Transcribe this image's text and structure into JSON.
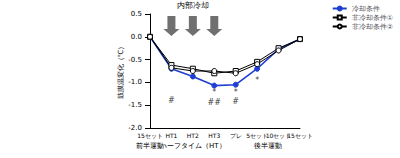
{
  "chart_data": {
    "type": "line",
    "y_label": "鼓膜温変化（℃）",
    "categories": [
      "15セット",
      "HT1",
      "HT2",
      "HT3",
      "プレ",
      "5セット",
      "10セット",
      "15セット"
    ],
    "series": [
      {
        "name": "冷却条件",
        "color": "#1f3fd0",
        "marker": "circle",
        "line_style": "solid",
        "values": [
          0,
          -0.7,
          -0.87,
          -1.07,
          -1.05,
          -0.7,
          -0.27,
          -0.05
        ]
      },
      {
        "name": "非冷却条件①",
        "color": "#000000",
        "marker": "square",
        "line_style": "solid",
        "values": [
          0,
          -0.62,
          -0.7,
          -0.8,
          -0.75,
          -0.55,
          -0.25,
          -0.05
        ]
      },
      {
        "name": "非冷却条件②",
        "color": "#000000",
        "marker": "open_circle",
        "line_style": "solid",
        "values": [
          0,
          -0.68,
          -0.75,
          -0.75,
          -0.8,
          -0.6,
          -0.3,
          -0.05
        ]
      }
    ],
    "ylim": [
      -2.0,
      0.5
    ],
    "yticks": [
      {
        "value": -2.0,
        "label": "-2.0"
      },
      {
        "value": -1.5,
        "label": "-1.5"
      },
      {
        "value": -1.0,
        "label": "-1.0"
      },
      {
        "value": -0.5,
        "label": "-0.5"
      },
      {
        "value": 0,
        "label": "0.0"
      },
      {
        "value": 0.5,
        "label": "0.5"
      }
    ],
    "grid": false,
    "legend": "top-right",
    "annotations": [
      {
        "text": "#",
        "category_index": 1,
        "y": -1.4
      },
      {
        "text": "*",
        "category_index": 3,
        "y": -1.22
      },
      {
        "text": "##",
        "category_index": 3,
        "y": -1.45
      },
      {
        "text": "*",
        "category_index": 4,
        "y": -1.22
      },
      {
        "text": "#",
        "category_index": 4,
        "y": -1.42
      },
      {
        "text": "*",
        "category_index": 5,
        "y": -0.95
      }
    ],
    "cooling": {
      "label": "内部冷却",
      "category_indices": [
        1,
        2,
        3
      ]
    },
    "phases": [
      {
        "label": "前半運動",
        "from": 0,
        "to": 0
      },
      {
        "label": "ハーフタイム（HT）",
        "from": 1,
        "to": 3
      },
      {
        "label": "後半運動",
        "from": 4,
        "to": 7
      }
    ]
  }
}
